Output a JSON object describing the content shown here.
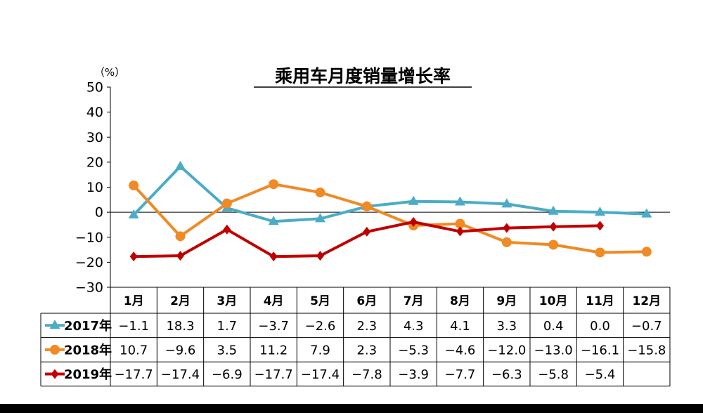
{
  "chart_data": {
    "type": "line",
    "title": "乘用车月度销量增长率",
    "unit_label": "（%）",
    "categories": [
      "1月",
      "2月",
      "3月",
      "4月",
      "5月",
      "6月",
      "7月",
      "8月",
      "9月",
      "10月",
      "11月",
      "12月"
    ],
    "ylim": [
      -30,
      50
    ],
    "yticks": [
      "50",
      "40",
      "30",
      "20",
      "10",
      "0",
      "−10",
      "−20",
      "−30"
    ],
    "grid": false,
    "series": [
      {
        "name": "2017年",
        "color": "#4aacc6",
        "marker": "triangle",
        "values": [
          -1.1,
          18.3,
          1.7,
          -3.7,
          -2.6,
          2.3,
          4.3,
          4.1,
          3.3,
          0.4,
          0.0,
          -0.7
        ],
        "labels": [
          "−1.1",
          "18.3",
          "1.7",
          "−3.7",
          "−2.6",
          "2.3",
          "4.3",
          "4.1",
          "3.3",
          "0.4",
          "0.0",
          "−0.7"
        ]
      },
      {
        "name": "2018年",
        "color": "#f08a24",
        "marker": "circle",
        "values": [
          10.7,
          -9.6,
          3.5,
          11.2,
          7.9,
          2.3,
          -5.3,
          -4.6,
          -12.0,
          -13.0,
          -16.1,
          -15.8
        ],
        "labels": [
          "10.7",
          "−9.6",
          "3.5",
          "11.2",
          "7.9",
          "2.3",
          "−5.3",
          "−4.6",
          "−12.0",
          "−13.0",
          "−16.1",
          "−15.8"
        ]
      },
      {
        "name": "2019年",
        "color": "#c00000",
        "marker": "diamond",
        "values": [
          -17.7,
          -17.4,
          -6.9,
          -17.7,
          -17.4,
          -7.8,
          -3.9,
          -7.7,
          -6.3,
          -5.8,
          -5.4,
          null
        ],
        "labels": [
          "−17.7",
          "−17.4",
          "−6.9",
          "−17.7",
          "−17.4",
          "−7.8",
          "−3.9",
          "−7.7",
          "−6.3",
          "−5.8",
          "−5.4",
          ""
        ]
      }
    ]
  }
}
